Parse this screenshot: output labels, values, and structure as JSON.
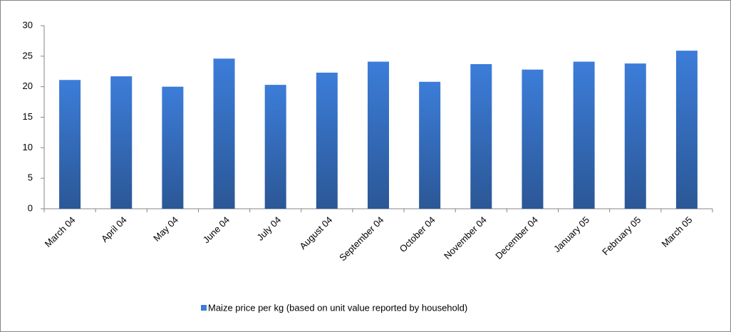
{
  "chart_data": {
    "type": "bar",
    "categories": [
      "March 04",
      "April 04",
      "May 04",
      "June 04",
      "July 04",
      "August 04",
      "September 04",
      "October 04",
      "November 04",
      "December 04",
      "January 05",
      "February 05",
      "March 05"
    ],
    "series": [
      {
        "name": "Maize price per kg (based on unit value reported by household)",
        "color": "#3c7dd9",
        "values": [
          21.1,
          21.7,
          20.0,
          24.6,
          20.3,
          22.3,
          24.1,
          20.8,
          23.7,
          22.8,
          24.1,
          23.8,
          25.9
        ]
      }
    ],
    "ylim": [
      0,
      30
    ],
    "yticks": [
      0,
      5,
      10,
      15,
      20,
      25,
      30
    ],
    "grid": false,
    "legend": "bottom"
  }
}
